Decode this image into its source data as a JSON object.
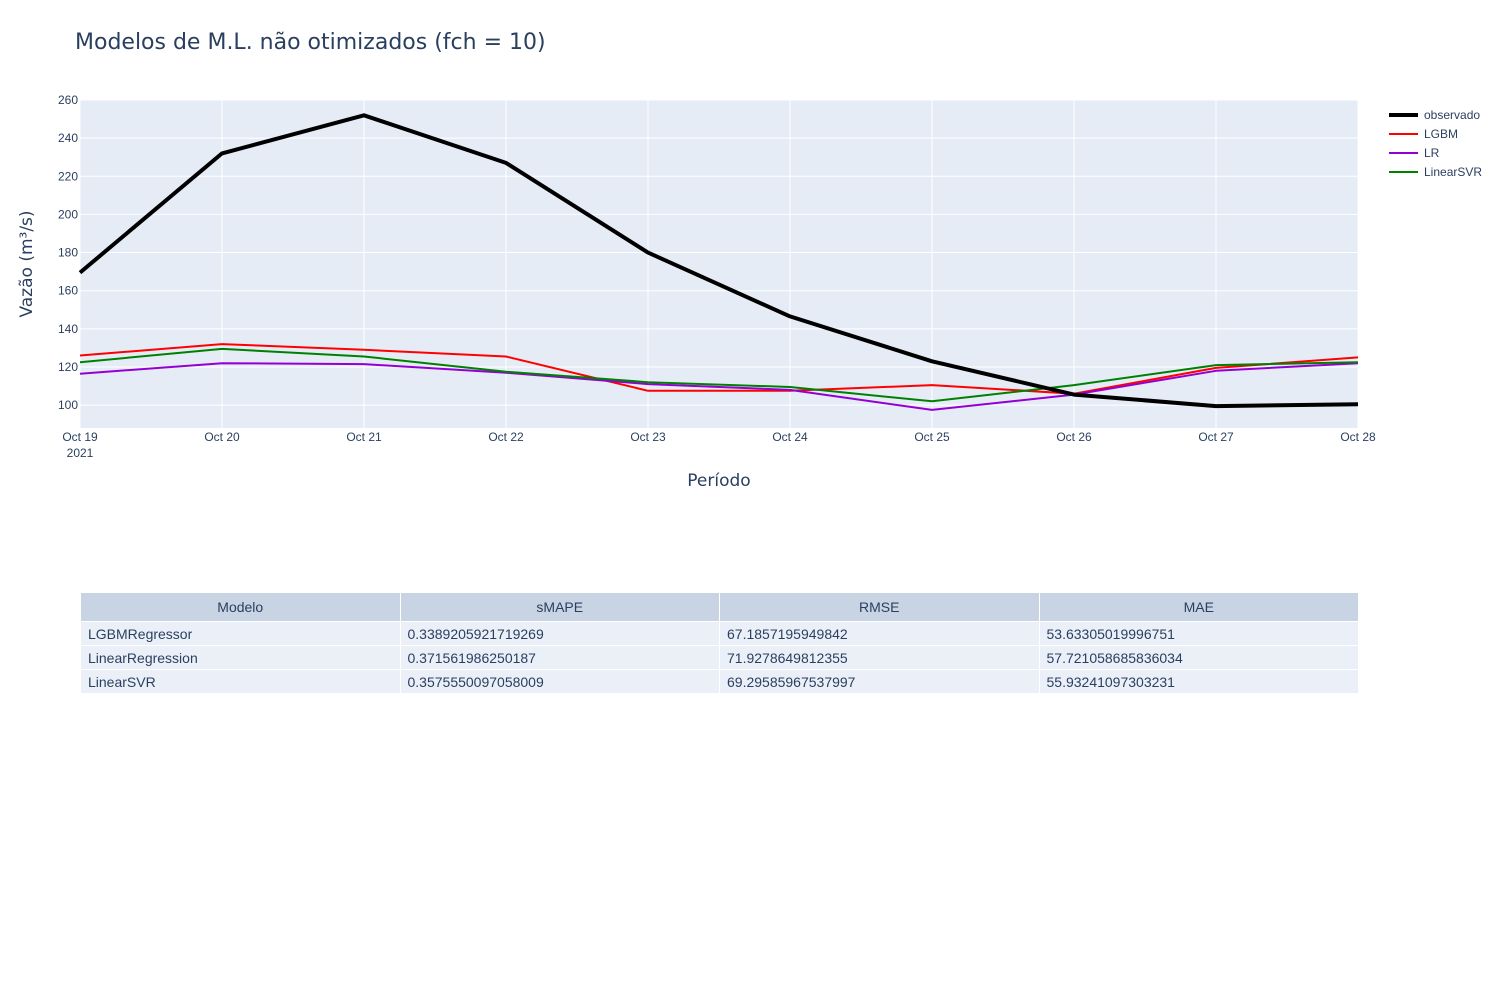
{
  "chart_data": {
    "type": "line",
    "title": "Modelos de M.L. não otimizados (fch = 10)",
    "xlabel": "Período",
    "ylabel": "Vazão (m³/s)",
    "x": [
      "2021-10-19",
      "2021-10-20",
      "2021-10-21",
      "2021-10-22",
      "2021-10-23",
      "2021-10-24",
      "2021-10-25",
      "2021-10-26",
      "2021-10-27",
      "2021-10-28"
    ],
    "x_tick_labels": [
      "Oct 19",
      "Oct 20",
      "Oct 21",
      "Oct 22",
      "Oct 23",
      "Oct 24",
      "Oct 25",
      "Oct 26",
      "Oct 27",
      "Oct 28"
    ],
    "x_tick_year": "2021",
    "ylim": [
      88,
      260
    ],
    "y_ticks": [
      100,
      120,
      140,
      160,
      180,
      200,
      220,
      240,
      260
    ],
    "grid": true,
    "legend_position": "top-right",
    "series": [
      {
        "name": "observado",
        "color": "#000000",
        "values": [
          169.5,
          232,
          252,
          227,
          180,
          146.5,
          123,
          105.5,
          99.5,
          100.5
        ]
      },
      {
        "name": "LGBM",
        "color": "#ff0000",
        "values": [
          126,
          132,
          129,
          125.5,
          107.5,
          107.5,
          110.5,
          106,
          119.5,
          125
        ]
      },
      {
        "name": "LR",
        "color": "#9400d3",
        "values": [
          116.5,
          122,
          121.5,
          117,
          111,
          108,
          97.5,
          105.5,
          118,
          122
        ]
      },
      {
        "name": "LinearSVR",
        "color": "#008000",
        "values": [
          122.5,
          129.5,
          125.5,
          117.5,
          112,
          109.5,
          102,
          110.5,
          121,
          122.5
        ]
      }
    ]
  },
  "table": {
    "headers": [
      "Modelo",
      "sMAPE",
      "RMSE",
      "MAE"
    ],
    "rows": [
      [
        "LGBMRegressor",
        "0.3389205921719269",
        "67.1857195949842",
        "53.63305019996751"
      ],
      [
        "LinearRegression",
        "0.371561986250187",
        "71.9278649812355",
        "57.721058685836034"
      ],
      [
        "LinearSVR",
        "0.3575550097058009",
        "69.29585967537997",
        "55.93241097303231"
      ]
    ]
  }
}
